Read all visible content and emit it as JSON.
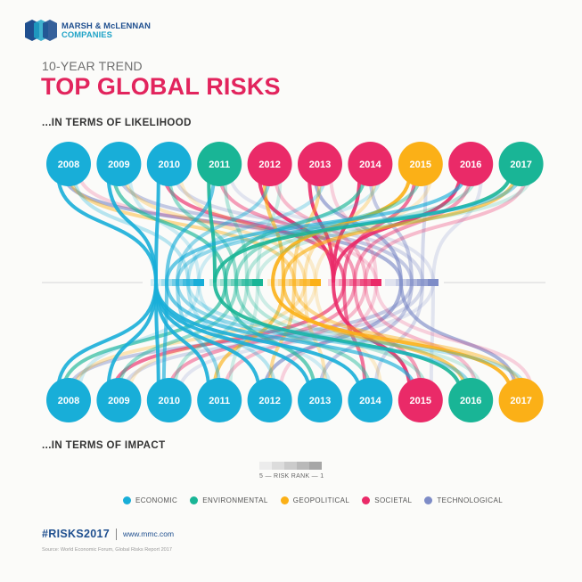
{
  "logo": {
    "line1": "MARSH & McLENNAN",
    "line2": "COMPANIES"
  },
  "header": {
    "subtitle": "10-YEAR TREND",
    "title": "TOP GLOBAL RISKS"
  },
  "sections": {
    "likelihood": "...IN TERMS OF LIKELIHOOD",
    "impact": "...IN TERMS OF IMPACT"
  },
  "colors": {
    "economic": "#18aed8",
    "environmental": "#19b596",
    "geopolitical": "#fbb017",
    "societal": "#ea2a68",
    "technological": "#7e8cc7"
  },
  "legend": [
    {
      "key": "economic",
      "label": "ECONOMIC"
    },
    {
      "key": "environmental",
      "label": "ENVIRONMENTAL"
    },
    {
      "key": "geopolitical",
      "label": "GEOPOLITICAL"
    },
    {
      "key": "societal",
      "label": "SOCIETAL"
    },
    {
      "key": "technological",
      "label": "TECHNOLOGICAL"
    }
  ],
  "likelihood_years": [
    {
      "year": "2008",
      "category": "economic"
    },
    {
      "year": "2009",
      "category": "economic"
    },
    {
      "year": "2010",
      "category": "economic"
    },
    {
      "year": "2011",
      "category": "environmental"
    },
    {
      "year": "2012",
      "category": "societal"
    },
    {
      "year": "2013",
      "category": "societal"
    },
    {
      "year": "2014",
      "category": "societal"
    },
    {
      "year": "2015",
      "category": "geopolitical"
    },
    {
      "year": "2016",
      "category": "societal"
    },
    {
      "year": "2017",
      "category": "environmental"
    }
  ],
  "impact_years": [
    {
      "year": "2008",
      "category": "economic"
    },
    {
      "year": "2009",
      "category": "economic"
    },
    {
      "year": "2010",
      "category": "economic"
    },
    {
      "year": "2011",
      "category": "economic"
    },
    {
      "year": "2012",
      "category": "economic"
    },
    {
      "year": "2013",
      "category": "economic"
    },
    {
      "year": "2014",
      "category": "economic"
    },
    {
      "year": "2015",
      "category": "societal"
    },
    {
      "year": "2016",
      "category": "environmental"
    },
    {
      "year": "2017",
      "category": "geopolitical"
    }
  ],
  "hub_categories": [
    "economic",
    "environmental",
    "geopolitical",
    "societal",
    "technological"
  ],
  "rank_scale": {
    "label": "5 — RISK RANK — 1",
    "shades": [
      "#ececec",
      "#dcdcdc",
      "#cbcbcb",
      "#b9b9b9",
      "#a6a6a6"
    ]
  },
  "footer": {
    "hashtag": "#RISKS2017",
    "url": "www.mmc.com",
    "source": "Source: World Economic Forum, Global Risks Report 2017"
  }
}
